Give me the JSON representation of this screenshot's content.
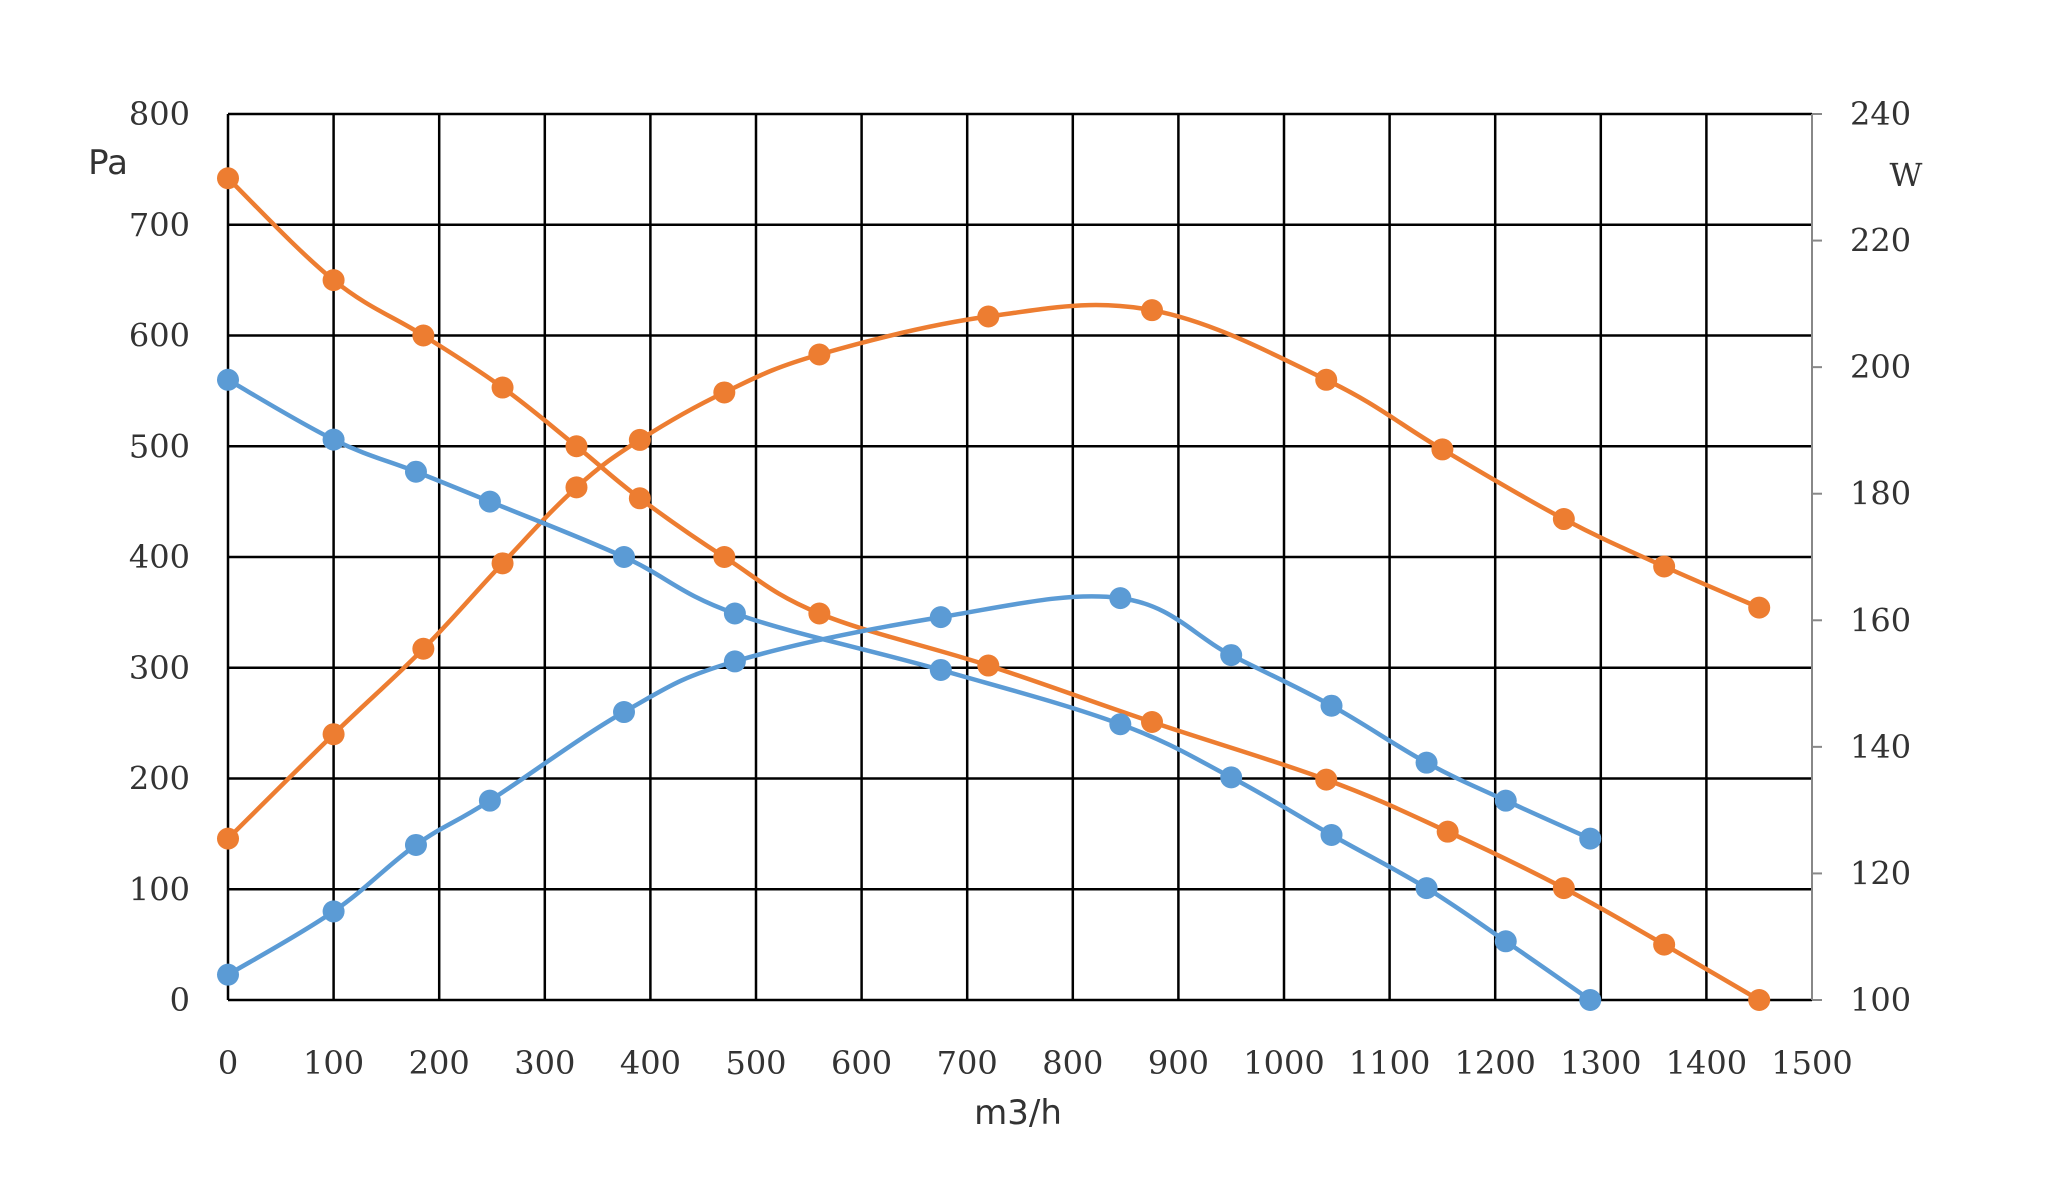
{
  "chart_data": {
    "type": "line",
    "title": "",
    "xlabel": "m3/h",
    "ylabel_left": "Pa",
    "ylabel_right": "W",
    "xlim": [
      0,
      1500
    ],
    "ylim_left": [
      0,
      800
    ],
    "ylim_right": [
      100,
      240
    ],
    "xticks": [
      "0",
      "100",
      "200",
      "300",
      "400",
      "500",
      "600",
      "700",
      "800",
      "900",
      "1000",
      "1100",
      "1200",
      "1300",
      "1400",
      "1500"
    ],
    "yticks_left": [
      "0",
      "100",
      "200",
      "300",
      "400",
      "500",
      "600",
      "700",
      "800"
    ],
    "yticks_right": [
      "100",
      "120",
      "140",
      "160",
      "180",
      "200",
      "220",
      "240"
    ],
    "grid": true,
    "legend": "none",
    "colors": {
      "blue": "#5b9bd5",
      "orange": "#ed7d31"
    },
    "series": [
      {
        "color": "#ed7d31",
        "axis": "left",
        "x": [
          0,
          100,
          185,
          260,
          330,
          390,
          470,
          560,
          720,
          875,
          1040,
          1155,
          1265,
          1360,
          1450
        ],
        "y": [
          742,
          650,
          600,
          553,
          500,
          453,
          400,
          349,
          302,
          251,
          199,
          152,
          101,
          50,
          0
        ]
      },
      {
        "color": "#ed7d31",
        "axis": "right",
        "x": [
          0,
          100,
          185,
          260,
          330,
          390,
          470,
          560,
          720,
          875,
          1040,
          1150,
          1265,
          1360,
          1450
        ],
        "y": [
          125.5,
          142,
          155.5,
          169,
          181,
          188.5,
          196,
          202,
          208,
          209,
          198,
          187,
          176,
          168.5,
          162
        ]
      },
      {
        "color": "#5b9bd5",
        "axis": "left",
        "x": [
          0,
          100,
          178,
          248,
          375,
          480,
          675,
          845,
          950,
          1045,
          1135,
          1210,
          1290
        ],
        "y": [
          560,
          506,
          477,
          450,
          400,
          349,
          298,
          249,
          201,
          149,
          101,
          53,
          0
        ]
      },
      {
        "color": "#5b9bd5",
        "axis": "right",
        "x": [
          0,
          100,
          178,
          248,
          375,
          480,
          675,
          845,
          950,
          1045,
          1135,
          1210,
          1290
        ],
        "y": [
          104,
          114,
          124.5,
          131.5,
          145.5,
          153.5,
          160.5,
          163.5,
          154.5,
          146.5,
          137.5,
          131.5,
          125.5
        ]
      }
    ]
  }
}
